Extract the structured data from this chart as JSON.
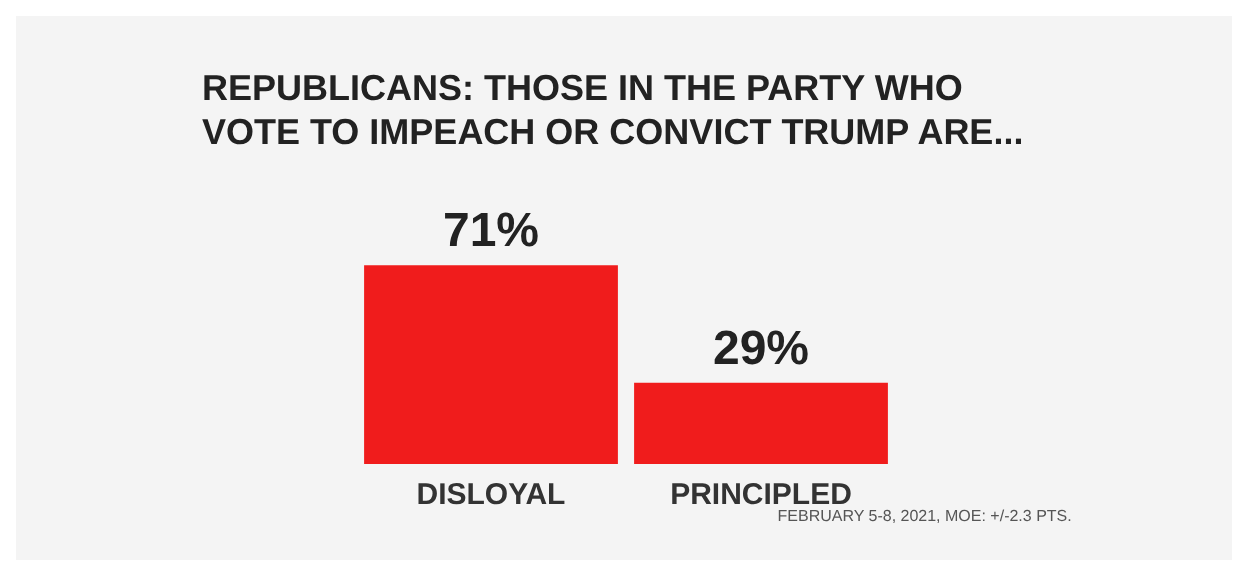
{
  "chart_data": {
    "type": "bar",
    "title": "REPUBLICANS: THOSE IN THE PARTY WHO VOTE TO IMPEACH OR CONVICT TRUMP ARE...",
    "categories": [
      "DISLOYAL",
      "PRINCIPLED"
    ],
    "values": [
      71,
      29
    ],
    "value_labels": [
      "71%",
      "29%"
    ],
    "color": "#f01c1c",
    "annotations": [
      "FEBRUARY 5-8, 2021, MOE: +/-2.3 PTS."
    ]
  }
}
